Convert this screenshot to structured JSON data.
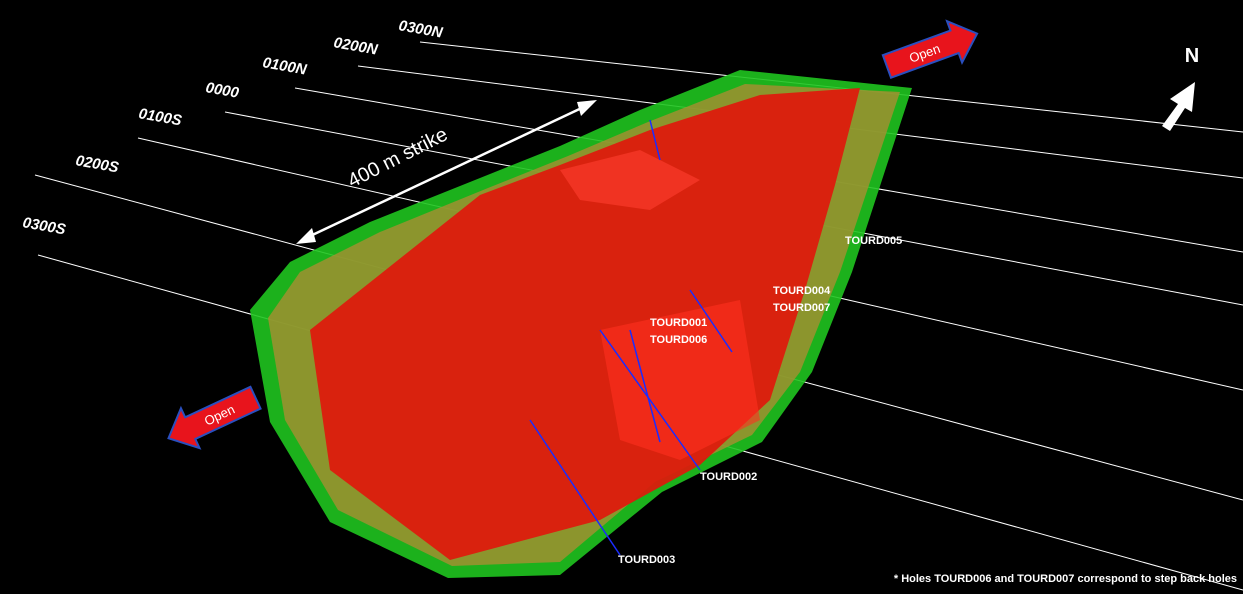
{
  "sections": [
    "0300N",
    "0200N",
    "0100N",
    "0000",
    "0100S",
    "0200S",
    "0300S"
  ],
  "holes": [
    "TOURD005",
    "TOURD004",
    "TOURD007",
    "TOURD001",
    "TOURD006",
    "TOURD002",
    "TOURD003"
  ],
  "strike_label": "400 m strike",
  "open_label": "Open",
  "north_label": "N",
  "footnote": "* Holes TOURD006 and TOURD007 correspond to step back holes"
}
